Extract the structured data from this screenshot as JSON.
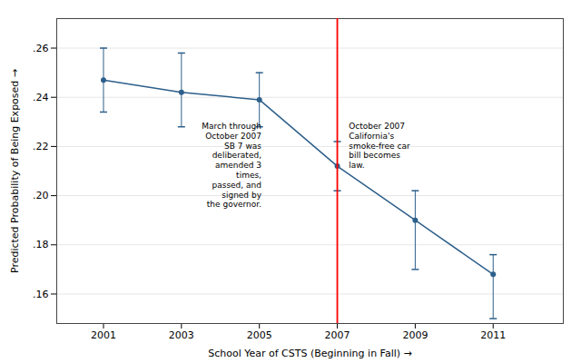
{
  "chart_data": {
    "type": "line",
    "xlabel": "School Year of CSTS (Beginning in Fall)",
    "ylabel": "Predicted Probability of Being Exposed",
    "x": [
      2001,
      2003,
      2005,
      2007,
      2009,
      2011
    ],
    "values": [
      0.247,
      0.242,
      0.239,
      0.212,
      0.19,
      0.168
    ],
    "y_upper": [
      0.26,
      0.258,
      0.25,
      0.222,
      0.202,
      0.176
    ],
    "y_lower": [
      0.234,
      0.228,
      0.228,
      0.202,
      0.17,
      0.15
    ],
    "color": "#2d5f8b",
    "marker": "circle",
    "xlim": [
      1999.8,
      2012.8
    ],
    "xticks": [
      2001,
      2003,
      2005,
      2007,
      2009,
      2011
    ],
    "ylim": [
      0.148,
      0.272
    ],
    "yticks": [
      {
        "value": 0.16,
        "label": ".16"
      },
      {
        "value": 0.18,
        "label": ".18"
      },
      {
        "value": 0.2,
        "label": ".20"
      },
      {
        "value": 0.22,
        "label": ".22"
      },
      {
        "value": 0.24,
        "label": ".24"
      },
      {
        "value": 0.26,
        "label": ".26"
      }
    ],
    "grid": true,
    "vlines": [
      {
        "x": 2007,
        "color": "red"
      }
    ],
    "annotations": [
      {
        "text": "March through\nOctober 2007\nSB 7 was\ndeliberated,\namended 3\ntimes,\npassed, and\nsigned by\nthe governor.",
        "x": 2005.1,
        "y": 0.2315
      },
      {
        "text": "October 2007\nCalifornia's\nsmoke-free car\nbill becomes\nlaw.",
        "x": 2007.25,
        "y": 0.2315
      }
    ]
  }
}
